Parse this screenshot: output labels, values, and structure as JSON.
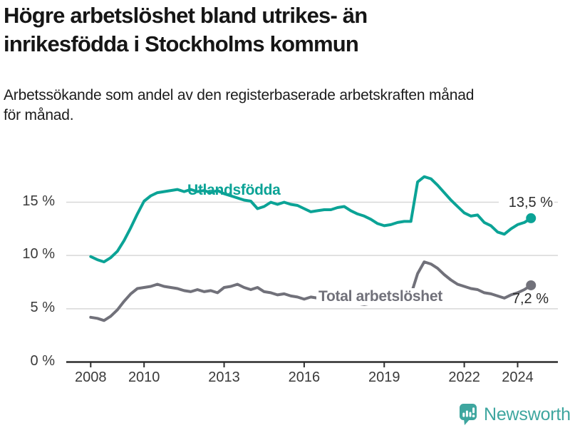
{
  "header": {
    "title_line1": "Högre arbetslöshet bland utrikes- än",
    "title_line2": "inrikesfödda i Stockholms kommun",
    "subtitle_line1": "Arbetssökande som andel av den registerbaserade arbetskraften månad",
    "subtitle_line2": "för månad."
  },
  "chart_data": {
    "type": "line",
    "x_start": 2008,
    "x_step": 0.25,
    "x_ticks": [
      2008,
      2010,
      2013,
      2016,
      2019,
      2022,
      2024
    ],
    "y_ticks": [
      0,
      5,
      10,
      15
    ],
    "y_tick_suffix": " %",
    "ylim": [
      0,
      18.6
    ],
    "xlim": [
      2007.1,
      2025.6
    ],
    "grid": "horizontal",
    "legend": "inline-labels",
    "colors": {
      "gridline": "#d8d8d8",
      "axis": "#2d2d2d",
      "value_label": "#2b2b2b"
    },
    "series": [
      {
        "name": "Utlandsfödda",
        "color": "#0ba396",
        "end_label": "13,5 %",
        "end_value": 13.5,
        "values": [
          9.9,
          9.6,
          9.4,
          9.8,
          10.4,
          11.4,
          12.6,
          13.9,
          15.1,
          15.6,
          15.9,
          16.0,
          16.1,
          16.2,
          16.0,
          16.2,
          16.0,
          16.1,
          15.9,
          16.1,
          15.8,
          15.6,
          15.4,
          15.2,
          15.1,
          14.4,
          14.6,
          15.0,
          14.8,
          15.0,
          14.8,
          14.7,
          14.4,
          14.1,
          14.2,
          14.3,
          14.3,
          14.5,
          14.6,
          14.2,
          13.9,
          13.7,
          13.4,
          13.0,
          12.8,
          12.9,
          13.1,
          13.2,
          13.2,
          16.9,
          17.4,
          17.2,
          16.6,
          15.9,
          15.2,
          14.6,
          14.0,
          13.7,
          13.8,
          13.1,
          12.8,
          12.2,
          12.0,
          12.5,
          12.9,
          13.1,
          13.5
        ]
      },
      {
        "name": "Total arbetslöshet",
        "color": "#71717a",
        "end_label": "7,2 %",
        "end_value": 7.2,
        "values": [
          4.2,
          4.1,
          3.9,
          4.3,
          4.9,
          5.7,
          6.4,
          6.9,
          7.0,
          7.1,
          7.3,
          7.1,
          7.0,
          6.9,
          6.7,
          6.6,
          6.8,
          6.6,
          6.7,
          6.5,
          7.0,
          7.1,
          7.3,
          7.0,
          6.8,
          7.0,
          6.6,
          6.5,
          6.3,
          6.4,
          6.2,
          6.1,
          5.9,
          6.1,
          6.0,
          5.9,
          5.8,
          5.7,
          5.6,
          5.6,
          5.5,
          5.4,
          5.5,
          5.6,
          5.8,
          5.9,
          6.0,
          6.1,
          6.3,
          8.3,
          9.4,
          9.2,
          8.8,
          8.2,
          7.7,
          7.3,
          7.1,
          6.9,
          6.8,
          6.5,
          6.4,
          6.2,
          6.0,
          6.3,
          6.5,
          6.8,
          7.2
        ]
      }
    ]
  },
  "logo": {
    "text": "Newsworthy",
    "color": "#3ea69f",
    "icon": "bar-chart-speech-bubble"
  }
}
